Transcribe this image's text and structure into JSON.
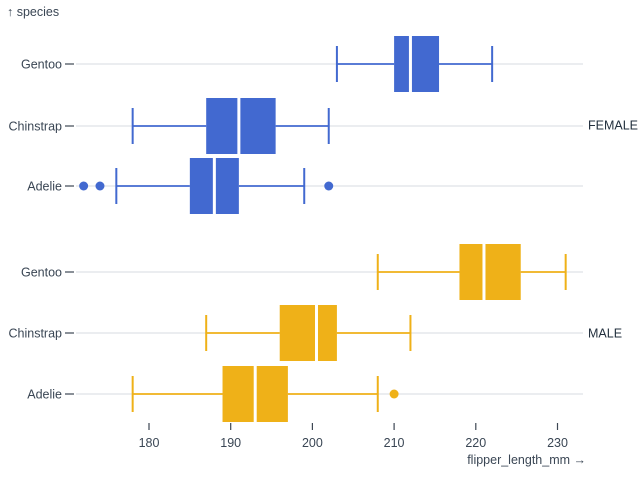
{
  "chart_data": {
    "type": "boxplot",
    "orientation": "horizontal",
    "title": "",
    "x_axis": {
      "label": "flipper_length_mm →",
      "ticks": [
        180,
        190,
        200,
        210,
        220,
        230
      ],
      "domain": [
        169,
        233
      ]
    },
    "y_axis": {
      "label": "↑ species"
    },
    "grid": true,
    "legend": "none",
    "facet_field": "sex",
    "facets": [
      {
        "label": "FEMALE",
        "color": "#4269d0",
        "rows": [
          {
            "category": "Gentoo",
            "whisker_low": 203,
            "q1": 210,
            "median": 212,
            "q3": 215.5,
            "whisker_high": 222,
            "outliers": []
          },
          {
            "category": "Chinstrap",
            "whisker_low": 178,
            "q1": 187,
            "median": 191,
            "q3": 195.5,
            "whisker_high": 202,
            "outliers": []
          },
          {
            "category": "Adelie",
            "whisker_low": 176,
            "q1": 185,
            "median": 188,
            "q3": 191,
            "whisker_high": 199,
            "outliers": [
              172,
              174,
              202
            ]
          }
        ]
      },
      {
        "label": "MALE",
        "color": "#efb118",
        "rows": [
          {
            "category": "Gentoo",
            "whisker_low": 208,
            "q1": 218,
            "median": 221,
            "q3": 225.5,
            "whisker_high": 231,
            "outliers": []
          },
          {
            "category": "Chinstrap",
            "whisker_low": 187,
            "q1": 196,
            "median": 200.5,
            "q3": 203,
            "whisker_high": 212,
            "outliers": []
          },
          {
            "category": "Adelie",
            "whisker_low": 178,
            "q1": 189,
            "median": 193,
            "q3": 197,
            "whisker_high": 208,
            "outliers": [
              210
            ]
          }
        ]
      }
    ]
  },
  "style": {
    "background": "#ffffff",
    "grid_color": "#d7dbe0",
    "text_color": "#3a4654",
    "tick_color": "#3d4754",
    "facet_label_color": "#222f3d",
    "median_color": "#ffffff"
  }
}
